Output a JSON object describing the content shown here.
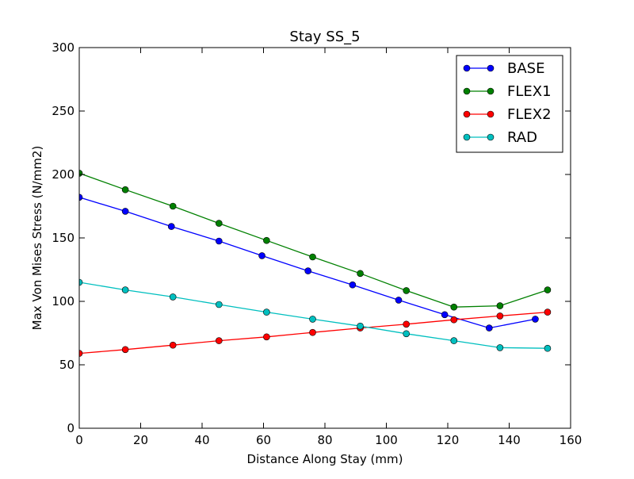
{
  "chart_data": {
    "type": "line",
    "title": "Stay SS_5",
    "xlabel": "Distance Along Stay (mm)",
    "ylabel": "Max Von Mises Stress (N/mm2)",
    "xlim": [
      0,
      160
    ],
    "ylim": [
      0,
      300
    ],
    "x_ticks": [
      "0",
      "20",
      "40",
      "60",
      "80",
      "100",
      "120",
      "140",
      "160"
    ],
    "y_ticks": [
      "0",
      "50",
      "100",
      "150",
      "200",
      "250",
      "300"
    ],
    "grid": false,
    "legend_position": "top-right",
    "series": [
      {
        "name": "BASE",
        "color": "#0000ff",
        "x": [
          0,
          15,
          30,
          45.5,
          59.5,
          74.5,
          89,
          104,
          119,
          133.5,
          148.5
        ],
        "y": [
          182,
          171,
          159,
          147.5,
          136,
          124,
          113,
          101,
          89.5,
          79,
          86
        ]
      },
      {
        "name": "FLEX1",
        "color": "#008000",
        "x": [
          0,
          15,
          30.5,
          45.5,
          61,
          76,
          91.5,
          106.5,
          122,
          137,
          152.5
        ],
        "y": [
          201,
          188,
          175,
          161.5,
          148,
          135,
          122,
          108.5,
          95.5,
          96.5,
          109
        ]
      },
      {
        "name": "FLEX2",
        "color": "#ff0000",
        "x": [
          0,
          15,
          30.5,
          45.5,
          61,
          76,
          91.5,
          106.5,
          122,
          137,
          152.5
        ],
        "y": [
          59,
          62,
          65.5,
          69,
          72,
          75.5,
          79,
          82,
          85.5,
          88.5,
          91.5
        ]
      },
      {
        "name": "RAD",
        "color": "#00bfbf",
        "x": [
          0,
          15,
          30.5,
          45.5,
          61,
          76,
          91.5,
          106.5,
          122,
          137,
          152.5
        ],
        "y": [
          115,
          109,
          103.5,
          97.5,
          91.5,
          86,
          80.5,
          74.5,
          69,
          63.5,
          63
        ]
      }
    ]
  }
}
